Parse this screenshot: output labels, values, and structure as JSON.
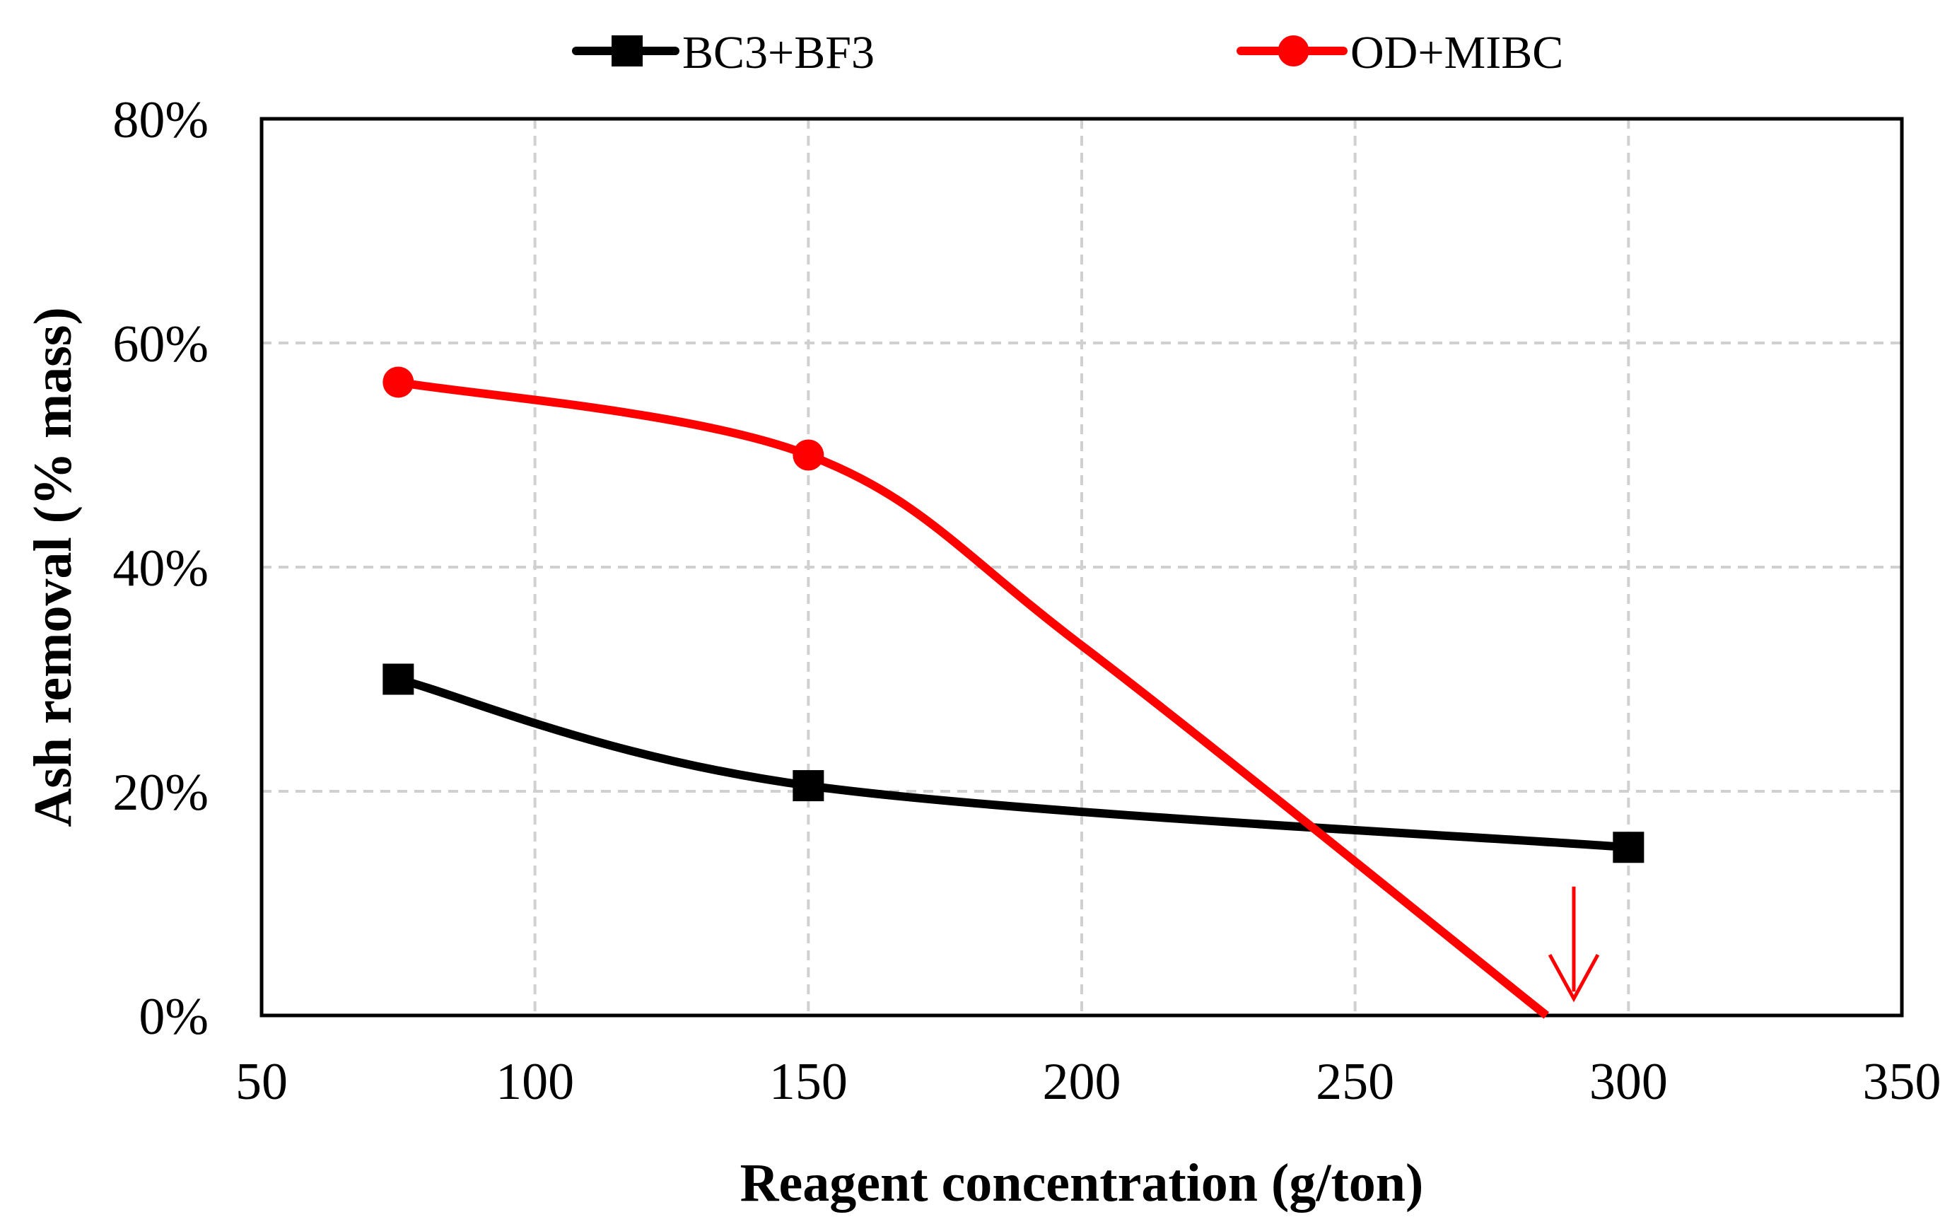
{
  "chart_data": {
    "type": "line",
    "title": "",
    "xlabel": "Reagent concentration (g/ton)",
    "ylabel": "Ash removal (% mass)",
    "xlim": [
      50,
      350
    ],
    "ylim": [
      0,
      0.8
    ],
    "xticks": [
      50,
      100,
      150,
      200,
      250,
      300,
      350
    ],
    "yticks": [
      0,
      0.2,
      0.4,
      0.6,
      0.8
    ],
    "xtick_labels": [
      "50",
      "100",
      "150",
      "200",
      "250",
      "300",
      "350"
    ],
    "ytick_labels": [
      "0%",
      "20%",
      "40%",
      "60%",
      "80%"
    ],
    "grid": true,
    "legend_position": "top",
    "series": [
      {
        "name": "BC3+BF3",
        "color": "#000000",
        "marker": "square",
        "x": [
          75,
          150,
          300
        ],
        "values": [
          0.3,
          0.205,
          0.15
        ]
      },
      {
        "name": "OD+MIBC",
        "color": "#ff0000",
        "marker": "circle",
        "x": [
          75,
          150
        ],
        "values": [
          0.565,
          0.5
        ],
        "curve_extension": {
          "x": [
            200,
            285
          ],
          "values": [
            0.33,
            0.0
          ]
        }
      }
    ],
    "annotations": [
      {
        "type": "arrow-down",
        "color": "#ff0000",
        "x": 290,
        "y_from": 0.115,
        "y_to": 0.015
      }
    ]
  }
}
